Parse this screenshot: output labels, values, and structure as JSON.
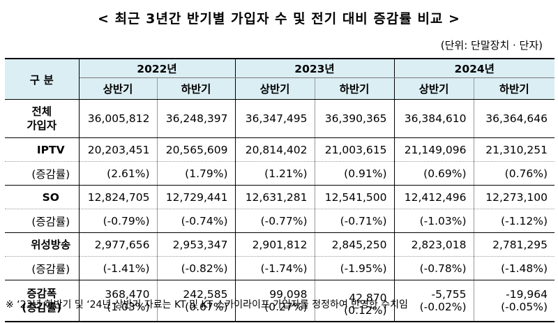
{
  "title": "< 최근 3년간 반기별 가입자 수 및 전기 대비 증감률 비교 >",
  "unit": "(단위: 단말장치 · 단자)",
  "header": {
    "category": "구 분",
    "years": [
      "2022년",
      "2023년",
      "2024년"
    ],
    "halves": [
      "상반기",
      "하반기",
      "상반기",
      "하반기",
      "상반기",
      "하반기"
    ]
  },
  "total": {
    "label": "전체\n가입자",
    "values": [
      "36,005,812",
      "36,248,397",
      "36,347,495",
      "36,390,365",
      "36,384,610",
      "36,364,646"
    ]
  },
  "groups": [
    {
      "label": "IPTV",
      "sub_label": "(증감률)",
      "values": [
        "20,203,451",
        "20,565,609",
        "20,814,402",
        "21,003,615",
        "21,149,096",
        "21,310,251"
      ],
      "rates": [
        "(2.61%)",
        "(1.79%)",
        "(1.21%)",
        "(0.91%)",
        "(0.69%)",
        "(0.76%)"
      ]
    },
    {
      "label": "SO",
      "sub_label": "(증감률)",
      "values": [
        "12,824,705",
        "12,729,441",
        "12,631,281",
        "12,541,500",
        "12,412,496",
        "12,273,100"
      ],
      "rates": [
        "(-0.79%)",
        "(-0.74%)",
        "(-0.77%)",
        "(-0.71%)",
        "(-1.03%)",
        "(-1.12%)"
      ]
    },
    {
      "label": "위성방송",
      "sub_label": "(증감률)",
      "values": [
        "2,977,656",
        "2,953,347",
        "2,901,812",
        "2,845,250",
        "2,823,018",
        "2,781,295"
      ],
      "rates": [
        "(-1.41%)",
        "(-0.82%)",
        "(-1.74%)",
        "(-1.95%)",
        "(-0.78%)",
        "(-1.48%)"
      ]
    }
  ],
  "increase": {
    "label": "증감폭\n(증감률)",
    "values": [
      "368,470",
      "242,585",
      "99,098",
      "42,870",
      "-5,755",
      "-19,964"
    ],
    "rates": [
      "(1.03%)",
      "(0.67%)",
      "(0.27%)",
      "(0.12%)",
      "(-0.02%)",
      "(-0.05%)"
    ]
  },
  "footnote": "※ ‘23년 하반기 및 ‘24년 상반기 자료는 KT 및 KT 스카이라이프 가입자를 정정하여 반영한 수치임"
}
